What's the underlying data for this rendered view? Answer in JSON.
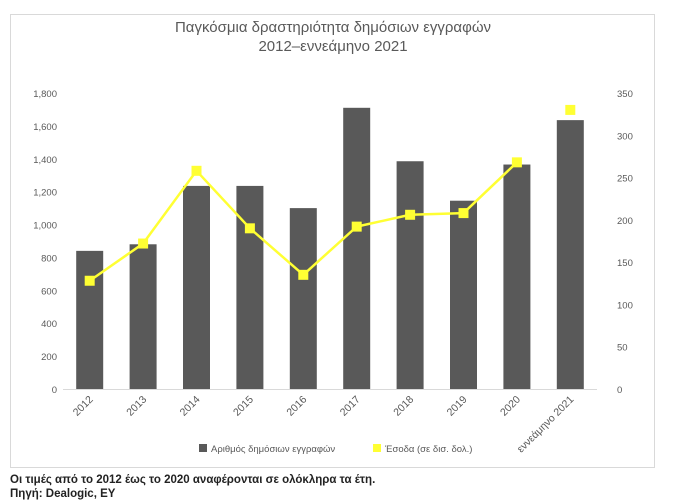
{
  "chart_data": {
    "type": "bar",
    "title_lines": [
      "Παγκόσμια δραστηριότητα δημόσιων εγγραφών",
      "2012–εννεάμηνο 2021"
    ],
    "categories": [
      "2012",
      "2013",
      "2014",
      "2015",
      "2016",
      "2017",
      "2018",
      "2019",
      "2020",
      "εννεάμηνο 2021"
    ],
    "series": [
      {
        "name": "Αριθμός δημόσιων εγγραφών",
        "type": "bar",
        "axis": "left",
        "color": "#595959",
        "values": [
          840,
          880,
          1235,
          1235,
          1100,
          1710,
          1385,
          1145,
          1365,
          1635
        ]
      },
      {
        "name": "Έσοδα (σε δισ. δολ.)",
        "type": "line",
        "axis": "right",
        "color": "#ffff33",
        "values": [
          128,
          172,
          258,
          190,
          135,
          192,
          206,
          208,
          268,
          330
        ],
        "last_point_unconnected": true
      }
    ],
    "y_left": {
      "ylim": [
        0,
        1800
      ],
      "ticks": [
        "0",
        "200",
        "400",
        "600",
        "800",
        "1,000",
        "1,200",
        "1,400",
        "1,600",
        "1,800"
      ]
    },
    "y_right": {
      "ylim": [
        0,
        350
      ],
      "ticks": [
        "0",
        "50",
        "100",
        "150",
        "200",
        "250",
        "300",
        "350"
      ]
    },
    "grid": false,
    "legend_position": "bottom"
  },
  "captions": {
    "note": "Οι τιμές από το 2012 έως το 2020 αναφέρονται σε ολόκληρα τα έτη.",
    "source": "Πηγή: Dealogic, EY"
  }
}
